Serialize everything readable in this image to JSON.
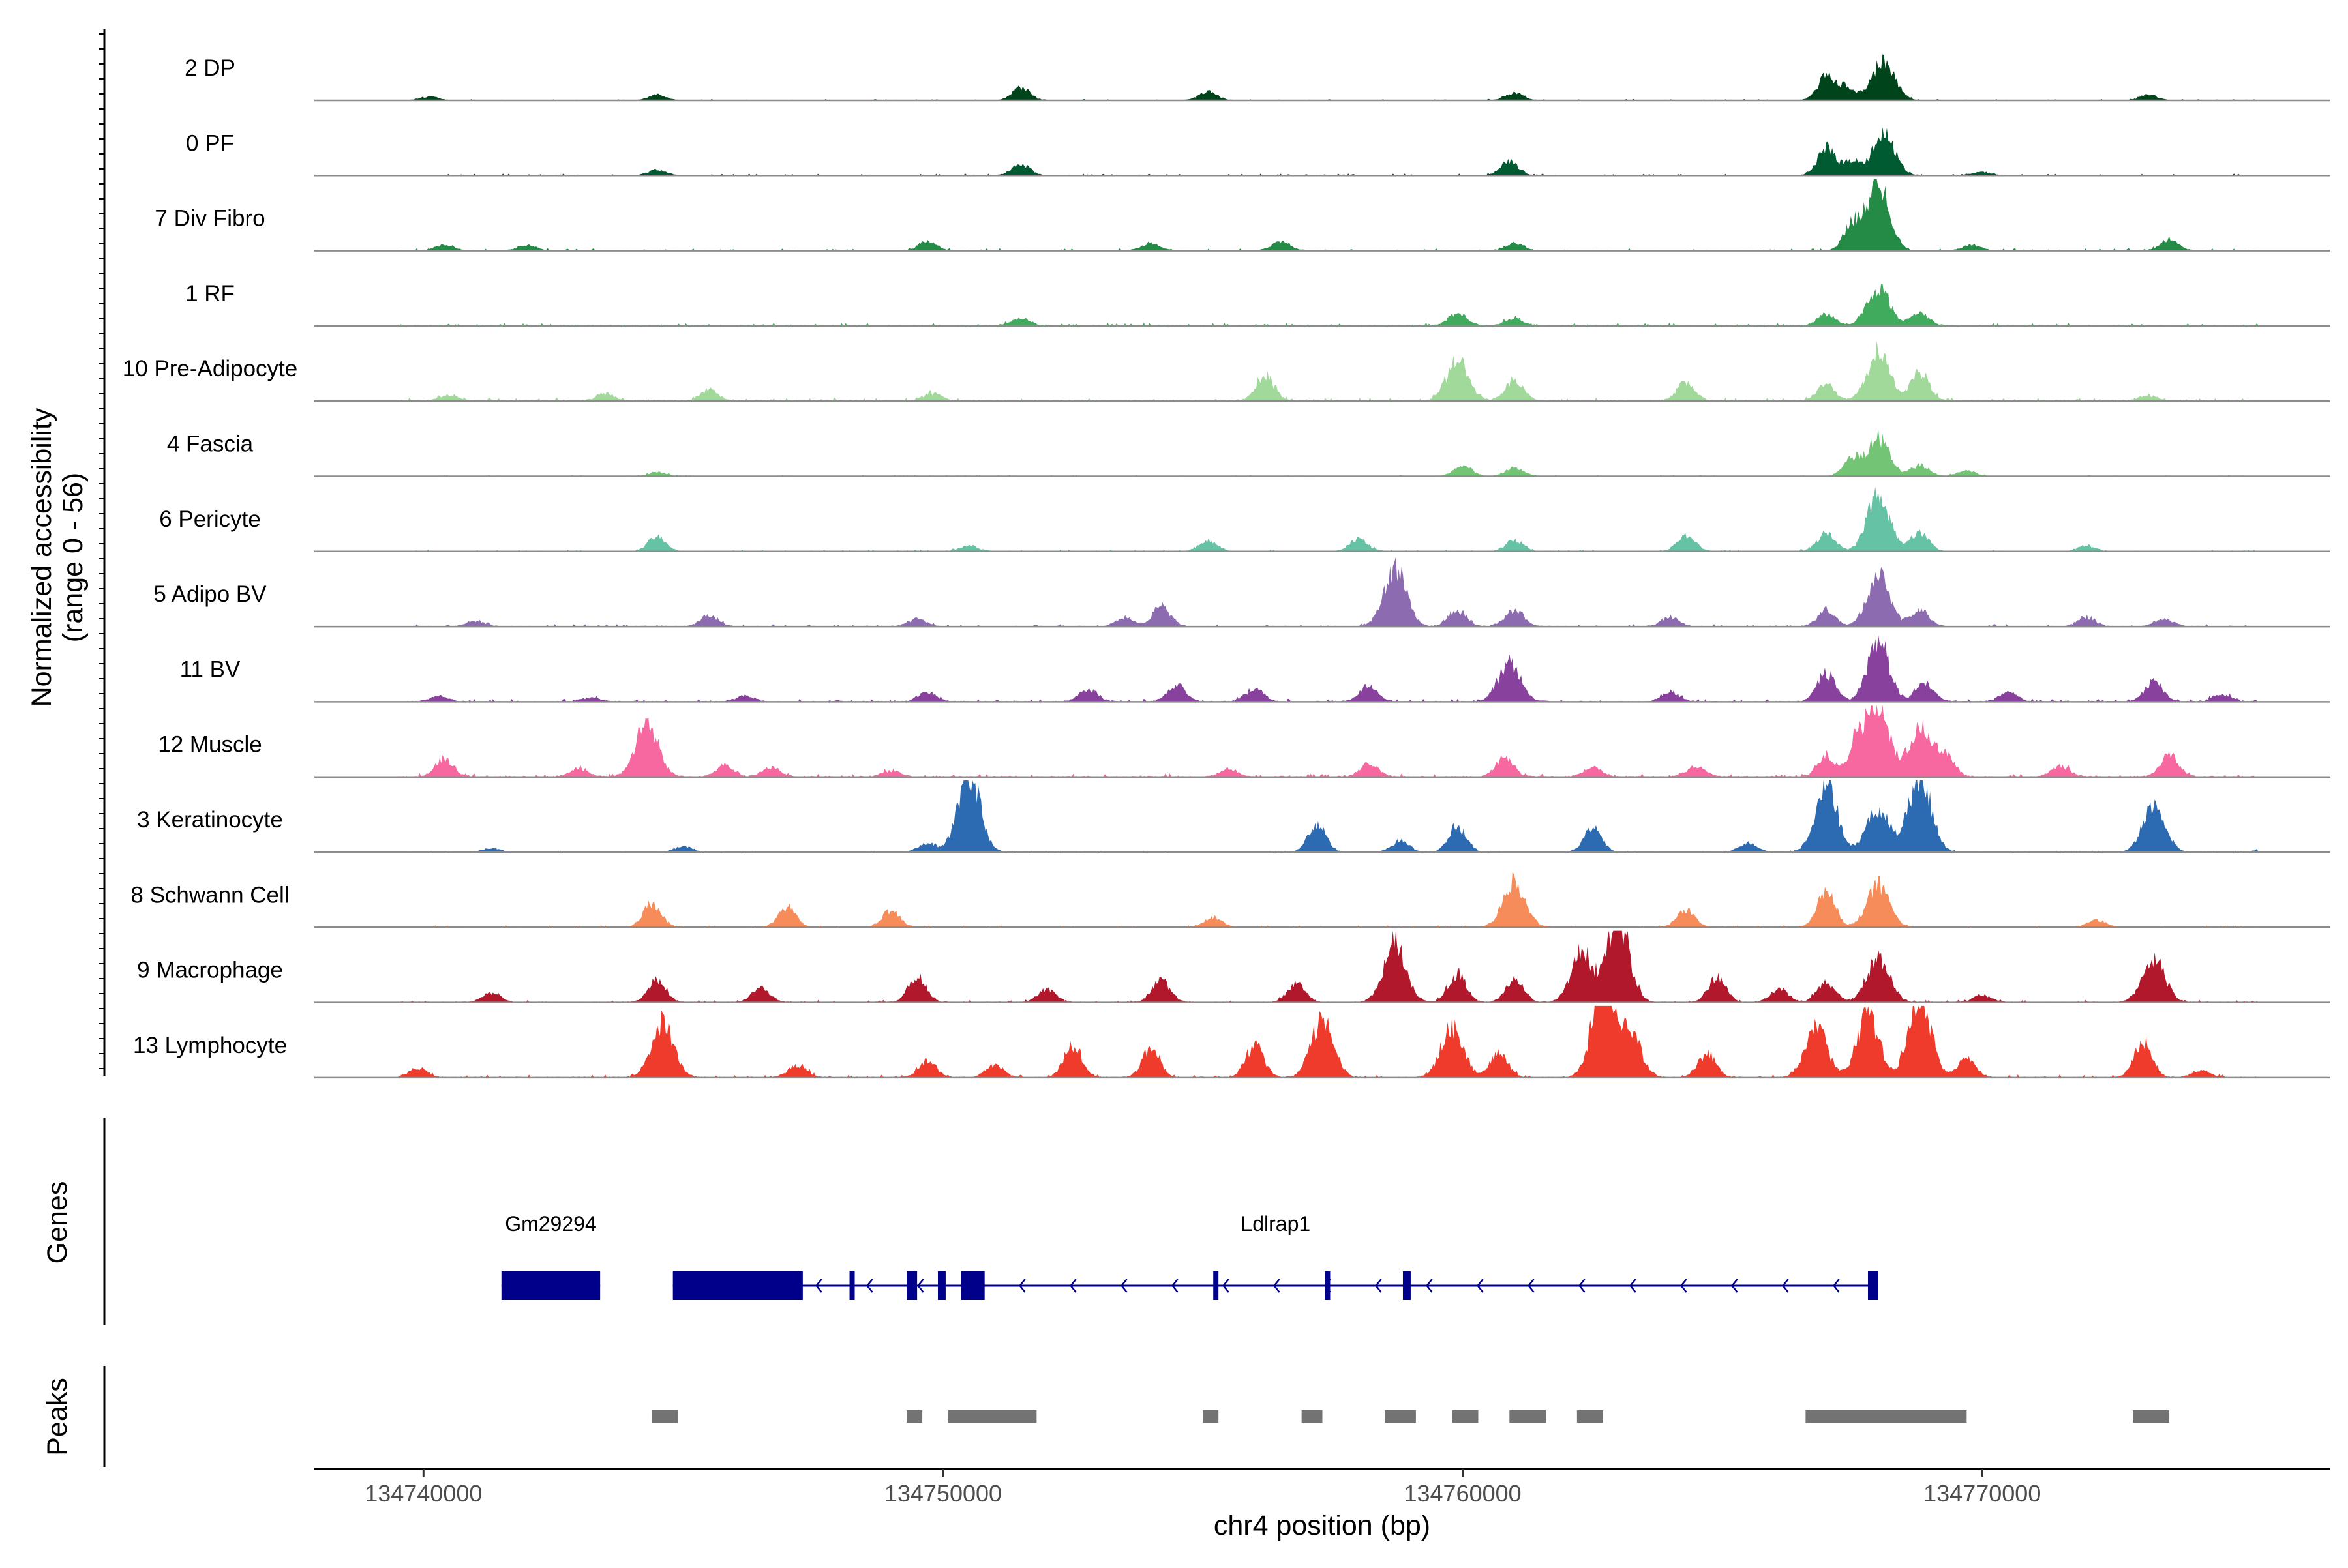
{
  "chart_data": {
    "type": "area",
    "title": "",
    "ylabel_line1": "Normalized accessibility",
    "ylabel_line2": "(range 0 - 56)",
    "y_range": [
      0,
      56
    ],
    "xlabel": "chr4 position (bp)",
    "x_range": [
      134737900,
      134776700
    ],
    "x_ticks": [
      134740000,
      134750000,
      134760000,
      134770000
    ],
    "x_tick_labels": [
      "134740000",
      "134750000",
      "134760000",
      "134770000"
    ],
    "panel_labels": {
      "genes": "Genes",
      "peaks": "Peaks"
    },
    "tracks": [
      {
        "label": "2 DP",
        "color": "#00441b",
        "coverage": [
          [
            134740100,
            2
          ],
          [
            134744500,
            3
          ],
          [
            134751500,
            7
          ],
          [
            134755100,
            5
          ],
          [
            134761000,
            4
          ],
          [
            134767000,
            13
          ],
          [
            134767400,
            7
          ],
          [
            134768100,
            22
          ],
          [
            134773200,
            3
          ]
        ]
      },
      {
        "label": "0 PF",
        "color": "#005a32",
        "coverage": [
          [
            134744500,
            3
          ],
          [
            134751500,
            6
          ],
          [
            134760900,
            8
          ],
          [
            134767000,
            15
          ],
          [
            134767500,
            8
          ],
          [
            134768100,
            23
          ],
          [
            134770000,
            2
          ]
        ]
      },
      {
        "label": "7 Div Fibro",
        "color": "#238b45",
        "coverage": [
          [
            134740400,
            3
          ],
          [
            134742000,
            3
          ],
          [
            134749700,
            5
          ],
          [
            134754000,
            4
          ],
          [
            134756500,
            5
          ],
          [
            134761000,
            4
          ],
          [
            134767500,
            14
          ],
          [
            134768000,
            37
          ],
          [
            134769800,
            3
          ],
          [
            134773600,
            6
          ]
        ]
      },
      {
        "label": "1 RF",
        "color": "#41ab5d",
        "coverage": [
          [
            134751500,
            4
          ],
          [
            134759900,
            7
          ],
          [
            134761000,
            4
          ],
          [
            134767000,
            6
          ],
          [
            134768000,
            21
          ],
          [
            134768800,
            7
          ]
        ]
      },
      {
        "label": "10 Pre-Adipocyte",
        "color": "#a1d99b",
        "coverage": [
          [
            134740500,
            3
          ],
          [
            134743500,
            4
          ],
          [
            134745500,
            6
          ],
          [
            134749800,
            4
          ],
          [
            134756200,
            14
          ],
          [
            134759900,
            22
          ],
          [
            134761000,
            12
          ],
          [
            134764300,
            10
          ],
          [
            134767000,
            9
          ],
          [
            134768000,
            28
          ],
          [
            134768800,
            16
          ],
          [
            134773200,
            3
          ]
        ]
      },
      {
        "label": "4 Fascia",
        "color": "#74c476",
        "coverage": [
          [
            134744500,
            2
          ],
          [
            134760000,
            6
          ],
          [
            134761000,
            5
          ],
          [
            134767500,
            9
          ],
          [
            134768000,
            21
          ],
          [
            134768800,
            6
          ],
          [
            134769700,
            3
          ]
        ]
      },
      {
        "label": "6 Pericyte",
        "color": "#66c2a4",
        "coverage": [
          [
            134744500,
            8
          ],
          [
            134750500,
            3
          ],
          [
            134755100,
            6
          ],
          [
            134758000,
            7
          ],
          [
            134761000,
            6
          ],
          [
            134764300,
            9
          ],
          [
            134767000,
            10
          ],
          [
            134768000,
            32
          ],
          [
            134768800,
            11
          ],
          [
            134772000,
            3
          ]
        ]
      },
      {
        "label": "5 Adipo BV",
        "color": "#8c6bb1",
        "coverage": [
          [
            134741000,
            3
          ],
          [
            134745500,
            6
          ],
          [
            134749500,
            4
          ],
          [
            134753500,
            5
          ],
          [
            134754200,
            11
          ],
          [
            134758700,
            32
          ],
          [
            134759900,
            9
          ],
          [
            134761000,
            9
          ],
          [
            134764000,
            5
          ],
          [
            134767000,
            9
          ],
          [
            134768000,
            28
          ],
          [
            134768800,
            9
          ],
          [
            134772000,
            5
          ],
          [
            134773500,
            4
          ]
        ]
      },
      {
        "label": "11 BV",
        "color": "#88419d",
        "coverage": [
          [
            134740300,
            3
          ],
          [
            134743200,
            2
          ],
          [
            134746200,
            3
          ],
          [
            134749700,
            5
          ],
          [
            134752800,
            7
          ],
          [
            134754500,
            9
          ],
          [
            134756000,
            7
          ],
          [
            134758200,
            9
          ],
          [
            134760900,
            21
          ],
          [
            134764000,
            5
          ],
          [
            134767000,
            16
          ],
          [
            134768000,
            32
          ],
          [
            134768900,
            10
          ],
          [
            134770500,
            5
          ],
          [
            134773300,
            11
          ],
          [
            134774600,
            4
          ]
        ]
      },
      {
        "label": "12 Muscle",
        "color": "#f768a1",
        "coverage": [
          [
            134740400,
            10
          ],
          [
            134743000,
            4
          ],
          [
            134744300,
            30
          ],
          [
            134745800,
            6
          ],
          [
            134746700,
            5
          ],
          [
            134749000,
            3
          ],
          [
            134755500,
            4
          ],
          [
            134758200,
            7
          ],
          [
            134760800,
            10
          ],
          [
            134762500,
            5
          ],
          [
            134764500,
            6
          ],
          [
            134767000,
            12
          ],
          [
            134767600,
            20
          ],
          [
            134768000,
            38
          ],
          [
            134768800,
            28
          ],
          [
            134769300,
            12
          ],
          [
            134771500,
            6
          ],
          [
            134773600,
            12
          ]
        ]
      },
      {
        "label": "3 Keratinocyte",
        "color": "#2c6bb1",
        "coverage": [
          [
            134741300,
            2
          ],
          [
            134745000,
            3
          ],
          [
            134749700,
            5
          ],
          [
            134750500,
            44
          ],
          [
            134757200,
            15
          ],
          [
            134758800,
            6
          ],
          [
            134759900,
            14
          ],
          [
            134762500,
            13
          ],
          [
            134765500,
            5
          ],
          [
            134767000,
            36
          ],
          [
            134768000,
            24
          ],
          [
            134768800,
            44
          ],
          [
            134773300,
            25
          ],
          [
            134775500,
            3
          ]
        ]
      },
      {
        "label": "8 Schwann Cell",
        "color": "#f68c5a",
        "coverage": [
          [
            134744400,
            13
          ],
          [
            134747000,
            11
          ],
          [
            134749000,
            9
          ],
          [
            134755200,
            5
          ],
          [
            134761000,
            25
          ],
          [
            134764300,
            10
          ],
          [
            134767000,
            20
          ],
          [
            134768000,
            23
          ],
          [
            134772200,
            4
          ]
        ]
      },
      {
        "label": "9 Macrophage",
        "color": "#b2182b",
        "coverage": [
          [
            134741300,
            5
          ],
          [
            134744500,
            12
          ],
          [
            134746500,
            8
          ],
          [
            134749500,
            14
          ],
          [
            134752000,
            7
          ],
          [
            134754200,
            12
          ],
          [
            134756800,
            10
          ],
          [
            134758700,
            33
          ],
          [
            134759900,
            16
          ],
          [
            134761000,
            12
          ],
          [
            134762300,
            27
          ],
          [
            134763000,
            45
          ],
          [
            134764900,
            14
          ],
          [
            134766100,
            7
          ],
          [
            134767000,
            11
          ],
          [
            134768000,
            25
          ],
          [
            134770000,
            4
          ],
          [
            134773300,
            24
          ]
        ]
      },
      {
        "label": "13 Lymphocyte",
        "color": "#ef3b2c",
        "coverage": [
          [
            134739900,
            5
          ],
          [
            134744600,
            30
          ],
          [
            134747200,
            7
          ],
          [
            134749700,
            9
          ],
          [
            134751000,
            7
          ],
          [
            134752500,
            18
          ],
          [
            134754000,
            16
          ],
          [
            134756000,
            18
          ],
          [
            134757300,
            32
          ],
          [
            134759800,
            28
          ],
          [
            134760700,
            13
          ],
          [
            134762700,
            50
          ],
          [
            134763200,
            26
          ],
          [
            134764700,
            13
          ],
          [
            134766800,
            27
          ],
          [
            134767800,
            34
          ],
          [
            134768800,
            46
          ],
          [
            134769700,
            10
          ],
          [
            134773100,
            20
          ],
          [
            134774200,
            4
          ]
        ]
      }
    ],
    "genes": [
      {
        "name": "Gm29294",
        "start": 134741500,
        "end": 134743400,
        "strand": "+",
        "exons": [
          [
            134741500,
            134743400
          ]
        ]
      },
      {
        "name": "Ldlrap1",
        "start": 134744800,
        "end": 134768000,
        "strand": "-",
        "exons": [
          [
            134744800,
            134747300
          ],
          [
            134748200,
            134748300
          ],
          [
            134749300,
            134749500
          ],
          [
            134749900,
            134750050
          ],
          [
            134750350,
            134750800
          ],
          [
            134755200,
            134755300
          ],
          [
            134757350,
            134757450
          ],
          [
            134758850,
            134759000
          ],
          [
            134767800,
            134768000
          ]
        ]
      }
    ],
    "peaks": [
      [
        134744400,
        134744900
      ],
      [
        134749300,
        134749600
      ],
      [
        134750100,
        134751800
      ],
      [
        134755000,
        134755300
      ],
      [
        134756900,
        134757300
      ],
      [
        134758500,
        134759100
      ],
      [
        134759800,
        134760300
      ],
      [
        134760900,
        134761600
      ],
      [
        134762200,
        134762700
      ],
      [
        134766600,
        134769700
      ],
      [
        134772900,
        134773600
      ]
    ]
  }
}
